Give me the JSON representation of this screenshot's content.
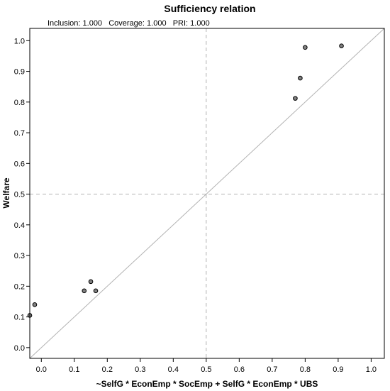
{
  "chart_data": {
    "type": "scatter",
    "title": "Sufficiency relation",
    "subtitle": "Inclusion: 1.000   Coverage: 1.000   PRI: 1.000",
    "xlabel": "~SelfG * EconEmp * SocEmp + SelfG * EconEmp * UBS",
    "ylabel": "Welfare",
    "xlim": [
      -0.035,
      1.04
    ],
    "ylim": [
      -0.035,
      1.04
    ],
    "xticks": [
      "0.0",
      "0.1",
      "0.2",
      "0.3",
      "0.4",
      "0.5",
      "0.6",
      "0.7",
      "0.8",
      "0.9",
      "1.0"
    ],
    "yticks": [
      "0.0",
      "0.1",
      "0.2",
      "0.3",
      "0.4",
      "0.5",
      "0.6",
      "0.7",
      "0.8",
      "0.9",
      "1.0"
    ],
    "reference_line": "diagonal",
    "threshold_lines": {
      "x": 0.5,
      "y": 0.5
    },
    "grid": false,
    "points": [
      {
        "x": -0.035,
        "y": 0.105
      },
      {
        "x": -0.02,
        "y": 0.14
      },
      {
        "x": 0.13,
        "y": 0.185
      },
      {
        "x": 0.15,
        "y": 0.215
      },
      {
        "x": 0.165,
        "y": 0.185
      },
      {
        "x": 0.77,
        "y": 0.812
      },
      {
        "x": 0.785,
        "y": 0.878
      },
      {
        "x": 0.8,
        "y": 0.978
      },
      {
        "x": 0.91,
        "y": 0.983
      }
    ],
    "colors": {
      "point_fill": "#808080",
      "point_stroke": "#000000",
      "diagonal": "#b3b3b3",
      "threshold": "#b3b3b3",
      "frame": "#000000"
    }
  }
}
